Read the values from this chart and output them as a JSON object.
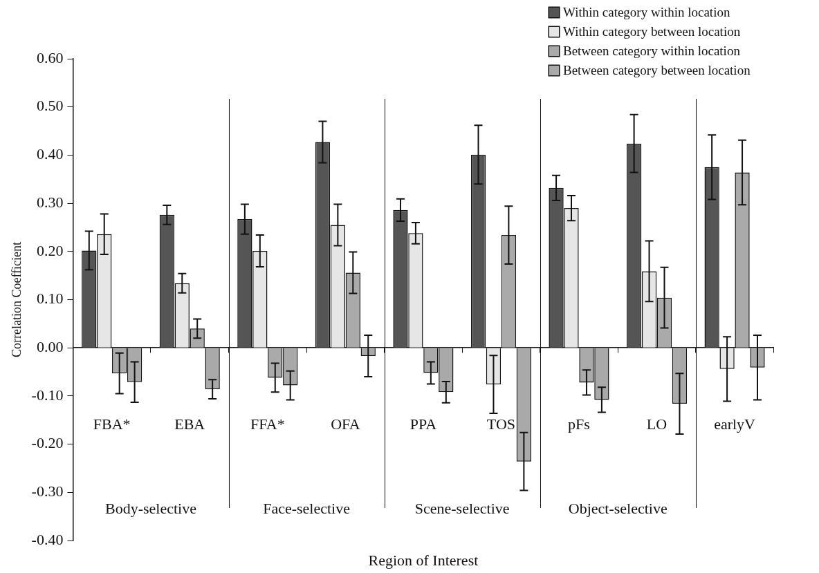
{
  "chart_data": {
    "type": "bar",
    "xlabel": "Region of Interest",
    "ylabel": "Correlation Coefficient",
    "categories": [
      "FBA*",
      "EBA",
      "FFA*",
      "OFA",
      "PPA",
      "TOS",
      "pFs",
      "LO",
      "earlyV"
    ],
    "annotations": [
      "Body-selective",
      "Face-selective",
      "Scene-selective",
      "Object-selective"
    ],
    "series": [
      {
        "name": "Within category within location",
        "color": "#555555",
        "values": [
          0.202,
          0.276,
          0.267,
          0.427,
          0.286,
          0.401,
          0.332,
          0.424,
          0.375
        ],
        "errors": [
          0.04,
          0.02,
          0.031,
          0.043,
          0.023,
          0.061,
          0.026,
          0.06,
          0.067
        ]
      },
      {
        "name": "Within category between location",
        "color": "#e6e6e6",
        "values": [
          0.236,
          0.134,
          0.201,
          0.255,
          0.238,
          -0.076,
          0.29,
          0.159,
          -0.044
        ],
        "errors": [
          0.042,
          0.02,
          0.033,
          0.043,
          0.022,
          0.06,
          0.026,
          0.063,
          0.067
        ]
      },
      {
        "name": "Between category within location",
        "color": "#aaaaaa",
        "values": [
          -0.053,
          0.04,
          -0.062,
          0.156,
          -0.052,
          0.234,
          -0.072,
          0.104,
          0.364
        ],
        "errors": [
          0.042,
          0.02,
          0.03,
          0.043,
          0.023,
          0.06,
          0.026,
          0.063,
          0.067
        ]
      },
      {
        "name": "Between category between location",
        "color": "#a9a9a9",
        "values": [
          -0.071,
          -0.086,
          -0.078,
          -0.017,
          -0.092,
          -0.236,
          -0.108,
          -0.116,
          -0.041
        ],
        "errors": [
          0.042,
          0.02,
          0.03,
          0.043,
          0.022,
          0.06,
          0.026,
          0.063,
          0.067
        ]
      }
    ],
    "ylim": [
      -0.4,
      0.6
    ],
    "yticks": [
      {
        "value": -0.4,
        "label": "-0.40"
      },
      {
        "value": -0.3,
        "label": "-0.30"
      },
      {
        "value": -0.2,
        "label": "-0.20"
      },
      {
        "value": -0.1,
        "label": "-0.10"
      },
      {
        "value": 0,
        "label": "0.00"
      },
      {
        "value": 0.1,
        "label": "0.10"
      },
      {
        "value": 0.2,
        "label": "0.20"
      },
      {
        "value": 0.3,
        "label": "0.30"
      },
      {
        "value": 0.4,
        "label": "0.40"
      },
      {
        "value": 0.5,
        "label": "0.50"
      },
      {
        "value": 0.6,
        "label": "0.60"
      }
    ],
    "grid": false,
    "legend": "top right"
  }
}
